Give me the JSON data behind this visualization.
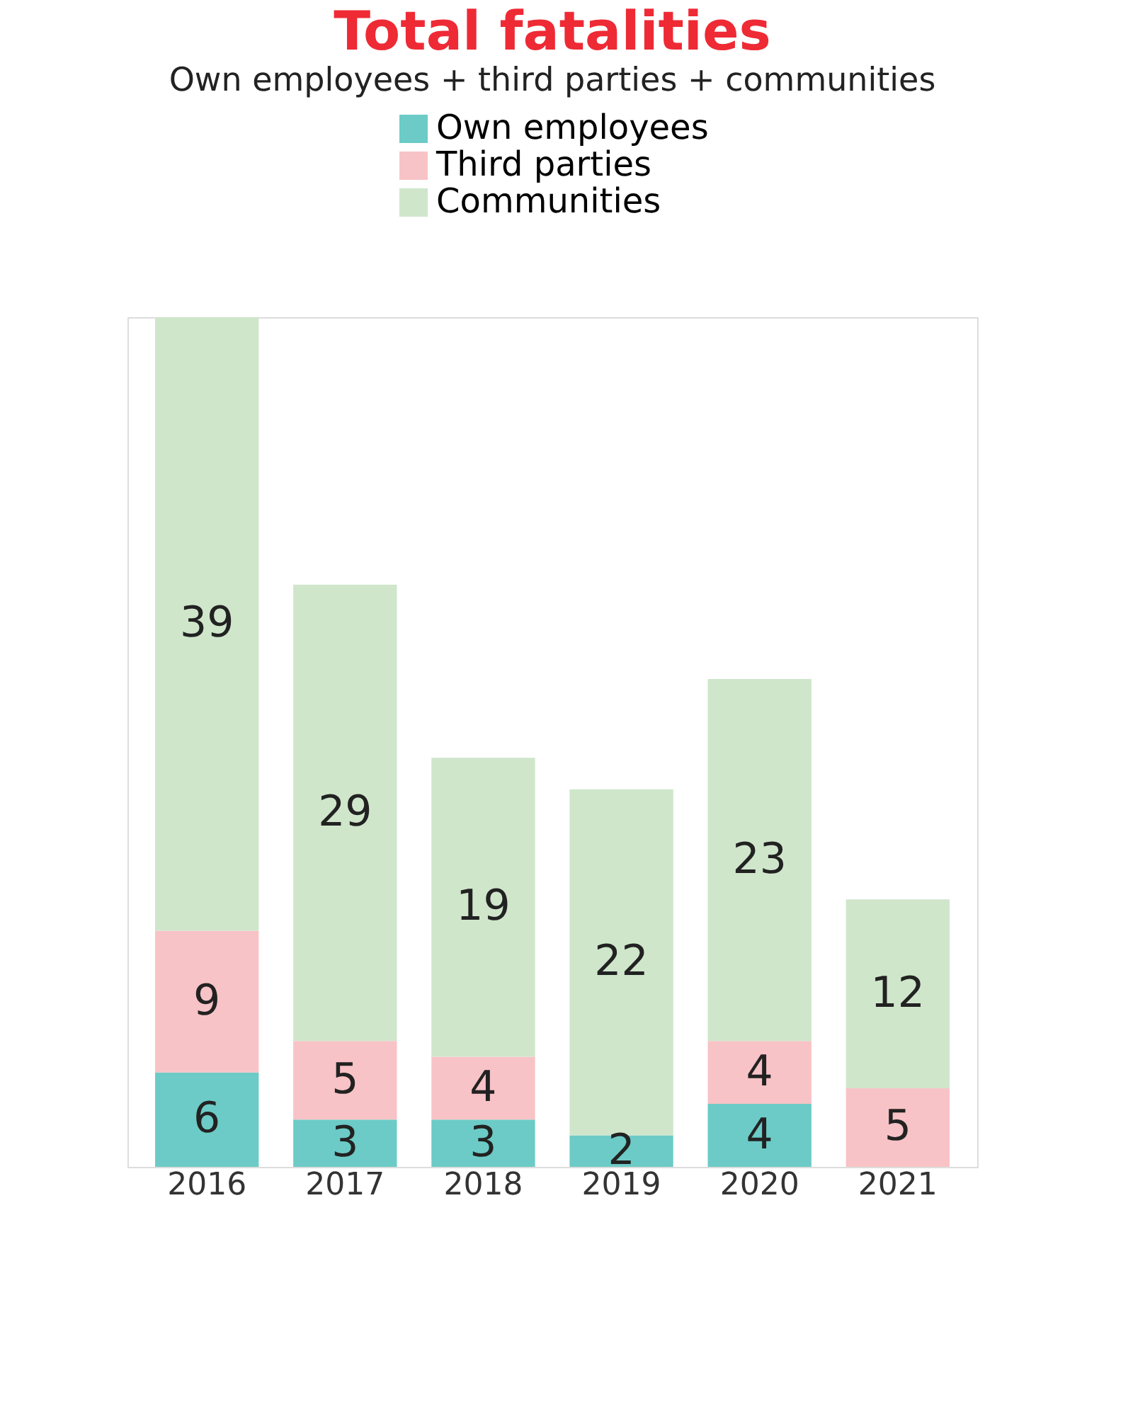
{
  "chart_data": {
    "type": "bar",
    "title": "Total fatalities",
    "subtitle": "Own employees + third parties + communities",
    "categories": [
      "2016",
      "2017",
      "2018",
      "2019",
      "2020",
      "2021"
    ],
    "stacked": true,
    "legend": "top",
    "grid": false,
    "series": [
      {
        "name": "Own employees",
        "color": "#6ccbc6",
        "values": [
          6,
          3,
          3,
          2,
          4,
          0
        ],
        "value_labels": [
          "6",
          "3",
          "3",
          "2",
          "4",
          null
        ]
      },
      {
        "name": "Third parties",
        "color": "#f8c3c6",
        "values": [
          9,
          5,
          4,
          0,
          4,
          5
        ],
        "value_labels": [
          "9",
          "5",
          "4",
          null,
          "4",
          "5"
        ]
      },
      {
        "name": "Communities",
        "color": "#cfe6cb",
        "values": [
          39,
          29,
          19,
          22,
          23,
          12
        ],
        "value_labels": [
          "39",
          "29",
          "19",
          "22",
          "23",
          "12"
        ]
      }
    ]
  }
}
